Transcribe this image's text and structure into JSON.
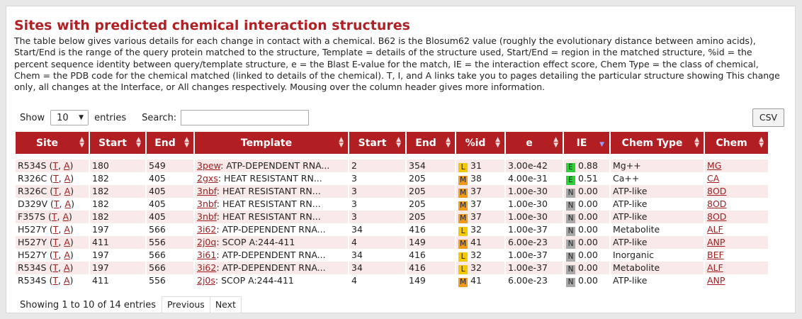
{
  "title": "Sites with predicted chemical interaction structures",
  "description": "The table below gives various details for each change in contact with a chemical. B62 is the Blosum62 value (roughly the evolutionary distance between amino acids), Start/End is the range of the query protein matched to the structure, Template = details of the structure used, Start/End = region in the matched structure, %id = the percent sequence identity between query/template structure, e = the Blast E-value for the match, IE = the interaction effect score, Chem Type = the class of chemical, Chem = the PDB code for the chemical matched (linked to details of the chemical). T, I, and A links take you to pages detailing the particular structure showing This change only, all changes at the Interface, or All changes respectively. Mousing over the column header gives more information.",
  "controls": {
    "show_label": "Show",
    "entries_value": "10",
    "entries_label": "entries",
    "search_label": "Search:",
    "search_value": "",
    "csv_label": "CSV"
  },
  "columns": [
    "Site",
    "Start",
    "End",
    "Template",
    "Start",
    "End",
    "%id",
    "e",
    "IE",
    "Chem Type",
    "Chem"
  ],
  "sort_column": "IE",
  "badge_colors": {
    "L": "#f5c800",
    "M": "#f29a16",
    "E": "#2fcf3a",
    "N": "#a8a8a8"
  },
  "rows": [
    {
      "site": "R534S",
      "t": "T",
      "a": "A",
      "start": "180",
      "end": "549",
      "pdb": "3pew",
      "template": ": ATP-DEPENDENT RNA...",
      "tstart": "2",
      "tend": "354",
      "id_badge": "L",
      "pid": "31",
      "e": "3.00e-42",
      "ie_badge": "E",
      "ie": "0.88",
      "chem_type": "Mg++",
      "chem": "MG"
    },
    {
      "site": "R326C",
      "t": "T",
      "a": "A",
      "start": "182",
      "end": "405",
      "pdb": "2gxs",
      "template": ": HEAT RESISTANT RN...",
      "tstart": "3",
      "tend": "205",
      "id_badge": "M",
      "pid": "38",
      "e": "4.00e-31",
      "ie_badge": "E",
      "ie": "0.51",
      "chem_type": "Ca++",
      "chem": "CA"
    },
    {
      "site": "R326C",
      "t": "T",
      "a": "A",
      "start": "182",
      "end": "405",
      "pdb": "3nbf",
      "template": ": HEAT RESISTANT RN...",
      "tstart": "3",
      "tend": "205",
      "id_badge": "M",
      "pid": "37",
      "e": "1.00e-30",
      "ie_badge": "N",
      "ie": "0.00",
      "chem_type": "ATP-like",
      "chem": "8OD"
    },
    {
      "site": "D329V",
      "t": "T",
      "a": "A",
      "start": "182",
      "end": "405",
      "pdb": "3nbf",
      "template": ": HEAT RESISTANT RN...",
      "tstart": "3",
      "tend": "205",
      "id_badge": "M",
      "pid": "37",
      "e": "1.00e-30",
      "ie_badge": "N",
      "ie": "0.00",
      "chem_type": "ATP-like",
      "chem": "8OD"
    },
    {
      "site": "F357S",
      "t": "T",
      "a": "A",
      "start": "182",
      "end": "405",
      "pdb": "3nbf",
      "template": ": HEAT RESISTANT RN...",
      "tstart": "3",
      "tend": "205",
      "id_badge": "M",
      "pid": "37",
      "e": "1.00e-30",
      "ie_badge": "N",
      "ie": "0.00",
      "chem_type": "ATP-like",
      "chem": "8OD"
    },
    {
      "site": "H527Y",
      "t": "T",
      "a": "A",
      "start": "197",
      "end": "566",
      "pdb": "3i62",
      "template": ": ATP-DEPENDENT RNA...",
      "tstart": "34",
      "tend": "416",
      "id_badge": "L",
      "pid": "32",
      "e": "1.00e-37",
      "ie_badge": "N",
      "ie": "0.00",
      "chem_type": "Metabolite",
      "chem": "ALF"
    },
    {
      "site": "H527Y",
      "t": "T",
      "a": "A",
      "start": "411",
      "end": "556",
      "pdb": "2j0q",
      "template": ": SCOP A:244-411",
      "tstart": "4",
      "tend": "149",
      "id_badge": "M",
      "pid": "41",
      "e": "6.00e-23",
      "ie_badge": "N",
      "ie": "0.00",
      "chem_type": "ATP-like",
      "chem": "ANP"
    },
    {
      "site": "H527Y",
      "t": "T",
      "a": "A",
      "start": "197",
      "end": "566",
      "pdb": "3i61",
      "template": ": ATP-DEPENDENT RNA...",
      "tstart": "34",
      "tend": "416",
      "id_badge": "L",
      "pid": "32",
      "e": "1.00e-37",
      "ie_badge": "N",
      "ie": "0.00",
      "chem_type": "Inorganic",
      "chem": "BEF"
    },
    {
      "site": "R534S",
      "t": "T",
      "a": "A",
      "start": "197",
      "end": "566",
      "pdb": "3i62",
      "template": ": ATP-DEPENDENT RNA...",
      "tstart": "34",
      "tend": "416",
      "id_badge": "L",
      "pid": "32",
      "e": "1.00e-37",
      "ie_badge": "N",
      "ie": "0.00",
      "chem_type": "Metabolite",
      "chem": "ALF"
    },
    {
      "site": "R534S",
      "t": "T",
      "a": "A",
      "start": "411",
      "end": "556",
      "pdb": "2j0s",
      "template": ": SCOP A:244-411",
      "tstart": "4",
      "tend": "149",
      "id_badge": "M",
      "pid": "41",
      "e": "6.00e-23",
      "ie_badge": "N",
      "ie": "0.00",
      "chem_type": "ATP-like",
      "chem": "ANP"
    }
  ],
  "pagination": {
    "info": "Showing 1 to 10 of 14 entries",
    "previous": "Previous",
    "next": "Next"
  }
}
